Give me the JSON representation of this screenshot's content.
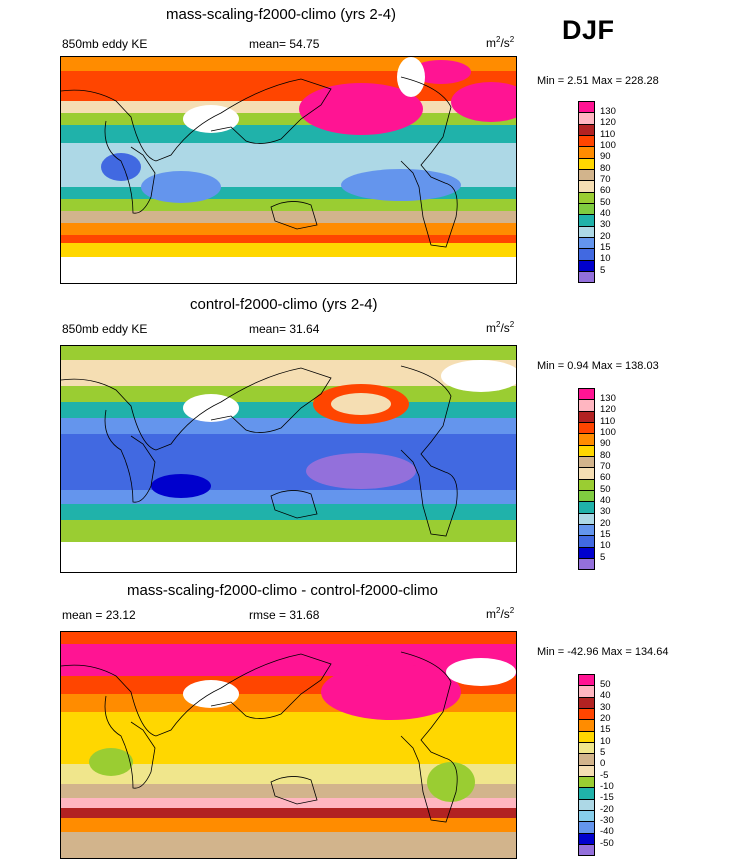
{
  "season": "DJF",
  "units_base": "m",
  "units_sup1": "2",
  "units_mid": "/s",
  "units_sup2": "2",
  "panels": [
    {
      "title": "mass-scaling-f2000-climo (yrs 2-4)",
      "left_label": "850mb eddy KE",
      "center_label": "mean=  54.75",
      "minmax": "Min =   2.51 Max = 228.28",
      "colorbar_labels": [
        "130",
        "120",
        "110",
        "100",
        "90",
        "80",
        "70",
        "60",
        "50",
        "40",
        "30",
        "20",
        "15",
        "10",
        "5"
      ]
    },
    {
      "title": "control-f2000-climo (yrs 2-4)",
      "left_label": "850mb eddy KE",
      "center_label": "mean=  31.64",
      "minmax": "Min =   0.94 Max = 138.03",
      "colorbar_labels": [
        "130",
        "120",
        "110",
        "100",
        "90",
        "80",
        "70",
        "60",
        "50",
        "40",
        "30",
        "20",
        "15",
        "10",
        "5"
      ]
    },
    {
      "title": "mass-scaling-f2000-climo - control-f2000-climo",
      "left_label": "mean =  23.12",
      "center_label": "rmse =  31.68",
      "minmax": "Min = -42.96 Max = 134.64",
      "colorbar_labels": [
        "50",
        "40",
        "30",
        "20",
        "15",
        "10",
        "5",
        "0",
        "-5",
        "-10",
        "-15",
        "-20",
        "-30",
        "-40",
        "-50"
      ]
    }
  ],
  "colors": {
    "abs_scale": [
      "#ff1493",
      "#ffb6c1",
      "#b22222",
      "#ff4500",
      "#ff8c00",
      "#ffd700",
      "#d2b48c",
      "#f5deb3",
      "#9acd32",
      "#7fcc40",
      "#20b2aa",
      "#add8e6",
      "#6495ed",
      "#4169e1",
      "#0000cd",
      "#9370db"
    ],
    "diff_scale": [
      "#ff1493",
      "#ffb6c1",
      "#b22222",
      "#ff4500",
      "#ff8c00",
      "#ffd700",
      "#f0e68c",
      "#d2b48c",
      "#f5deb3",
      "#9acd32",
      "#20b2aa",
      "#add8e6",
      "#87ceeb",
      "#6495ed",
      "#0000cd",
      "#9370db"
    ]
  }
}
